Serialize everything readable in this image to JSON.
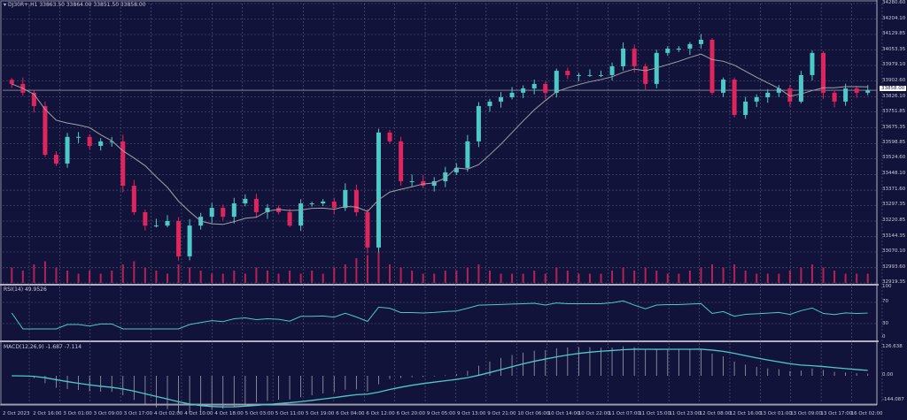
{
  "header": {
    "symbol_text": "DJ30R+,H1",
    "ohlc_text": "33863.50 33864.00 33851.50 33858.00"
  },
  "current_price": "33858.00",
  "colors": {
    "background": "#12133b",
    "bull": "#4cc9c9",
    "bear": "#e0245e",
    "ma": "#a0a0a8",
    "grid": "#5a5b7a"
  },
  "price_axis": [
    "34280.60",
    "34204.10",
    "34129.85",
    "34053.35",
    "33979.10",
    "33902.60",
    "33826.10",
    "33751.85",
    "33675.35",
    "33598.85",
    "33524.60",
    "33448.10",
    "33371.60",
    "33297.35",
    "33220.85",
    "33144.35",
    "33070.10",
    "32993.60",
    "32919.35"
  ],
  "rsi": {
    "label": "RSI(14) 49.9526",
    "axis": [
      "100",
      "70",
      "30",
      "0"
    ]
  },
  "macd": {
    "label": "MACD(12,26,9) -1.687 -7.114",
    "axis": [
      "126.638",
      "0.00",
      "-144.087"
    ]
  },
  "time_axis": [
    "2 Oct 2023",
    "2 Oct 16:00",
    "3 Oct 01:00",
    "3 Oct 09:00",
    "3 Oct 17:00",
    "4 Oct 02:00",
    "4 Oct 10:00",
    "4 Oct 18:00",
    "5 Oct 03:00",
    "5 Oct 11:00",
    "5 Oct 19:00",
    "6 Oct 04:00",
    "6 Oct 12:00",
    "6 Oct 20:00",
    "9 Oct 05:00",
    "9 Oct 13:00",
    "9 Oct 21:00",
    "10 Oct 06:00",
    "10 Oct 14:00",
    "10 Oct 22:00",
    "11 Oct 07:00",
    "11 Oct 15:00",
    "11 Oct 23:00",
    "12 Oct 08:00",
    "12 Oct 16:00",
    "13 Oct 01:00",
    "13 Oct 09:00",
    "13 Oct 17:00",
    "16 Oct 02:00"
  ],
  "chart_data": {
    "type": "candlestick",
    "ylim": [
      32919.35,
      34280.6
    ],
    "closes": [
      33889,
      33846,
      33781,
      33544,
      33501,
      33631,
      33631,
      33587,
      33609,
      33609,
      33393,
      33264,
      33199,
      33199,
      33221,
      33049,
      33199,
      33242,
      33285,
      33242,
      33307,
      33329,
      33264,
      33285,
      33264,
      33199,
      33307,
      33307,
      33316,
      33285,
      33372,
      33264,
      33092,
      33652,
      33609,
      33415,
      33415,
      33393,
      33415,
      33458,
      33480,
      33609,
      33781,
      33803,
      33824,
      33846,
      33867,
      33889,
      33846,
      33953,
      33932,
      33932,
      33932,
      33932,
      33975,
      34061,
      33975,
      33889,
      34040,
      34061,
      34061,
      34083,
      34104,
      33846,
      33910,
      33738,
      33803,
      33824,
      33846,
      33867,
      33803,
      33932,
      34040,
      33846,
      33803,
      33867,
      33846,
      33858
    ],
    "volume": [
      5,
      4,
      6,
      7,
      5,
      4,
      3,
      4,
      3,
      4,
      6,
      7,
      5,
      4,
      3,
      6,
      5,
      4,
      3,
      3,
      4,
      3,
      5,
      4,
      3,
      4,
      3,
      4,
      3,
      5,
      6,
      8,
      9,
      10,
      6,
      5,
      4,
      3,
      3,
      4,
      4,
      5,
      6,
      4,
      3,
      3,
      3,
      4,
      3,
      5,
      4,
      3,
      3,
      3,
      4,
      5,
      4,
      5,
      4,
      3,
      3,
      4,
      5,
      6,
      5,
      6,
      4,
      3,
      3,
      3,
      4,
      5,
      6,
      5,
      4,
      3,
      3,
      3
    ]
  }
}
